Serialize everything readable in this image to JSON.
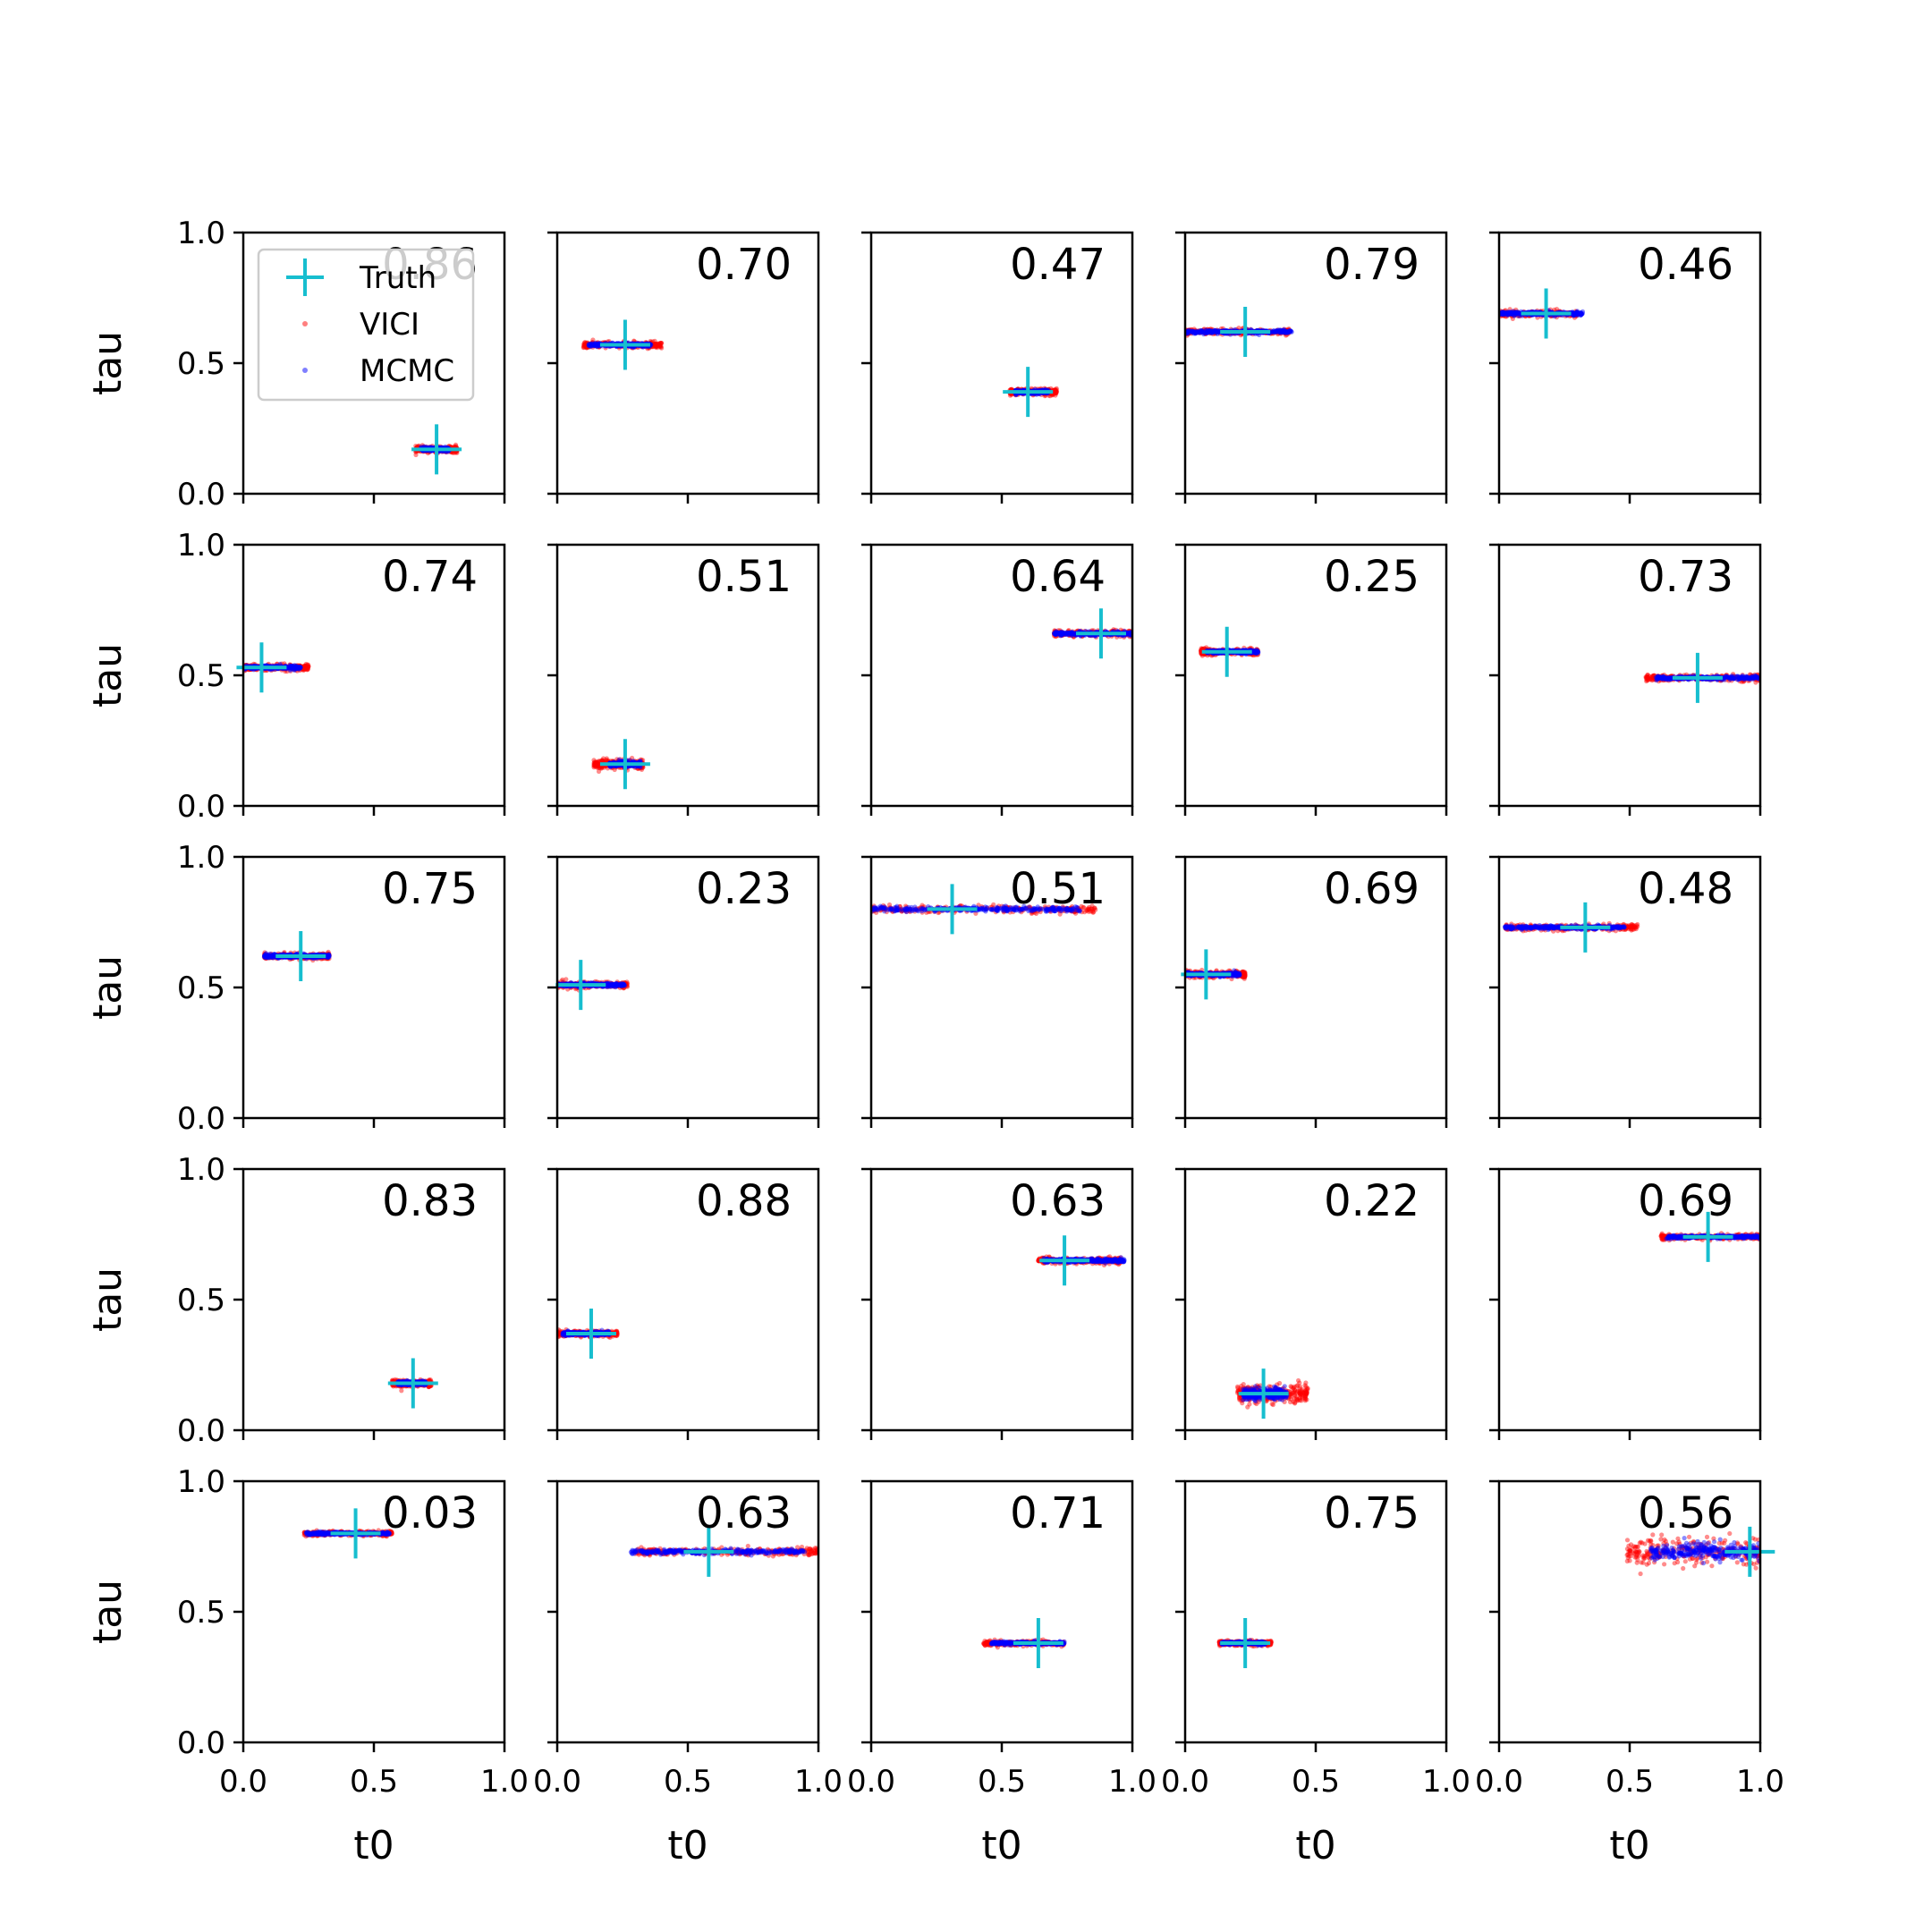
{
  "chart_data": {
    "type": "scatter",
    "rows": 5,
    "cols": 5,
    "xlabel": "t0",
    "ylabel": "tau",
    "xlim": [
      0,
      1
    ],
    "ylim": [
      0,
      1
    ],
    "xticks": [
      "0.0",
      "0.5",
      "1.0"
    ],
    "yticks": [
      "0.0",
      "0.5",
      "1.0"
    ],
    "legend": {
      "placement": "upper-left of first panel",
      "entries": [
        {
          "label": "Truth",
          "marker": "+",
          "color": "#17becf"
        },
        {
          "label": "VICI",
          "marker": "dot",
          "color": "#ff0000"
        },
        {
          "label": "MCMC",
          "marker": "dot",
          "color": "#0000ff"
        }
      ]
    },
    "series_names": [
      "VICI",
      "MCMC"
    ],
    "panels": [
      {
        "score": "0.86",
        "truth": [
          0.74,
          0.17
        ],
        "vici_range": [
          0.66,
          0.82
        ],
        "mcmc_range": [
          0.68,
          0.79
        ],
        "spread_tau": 0.01
      },
      {
        "score": "0.70",
        "truth": [
          0.26,
          0.57
        ],
        "vici_range": [
          0.1,
          0.4
        ],
        "mcmc_range": [
          0.12,
          0.36
        ],
        "spread_tau": 0.01
      },
      {
        "score": "0.47",
        "truth": [
          0.6,
          0.39
        ],
        "vici_range": [
          0.53,
          0.71
        ],
        "mcmc_range": [
          0.55,
          0.68
        ],
        "spread_tau": 0.01
      },
      {
        "score": "0.79",
        "truth": [
          0.23,
          0.62
        ],
        "vici_range": [
          0.0,
          0.4
        ],
        "mcmc_range": [
          0.0,
          0.41
        ],
        "spread_tau": 0.01
      },
      {
        "score": "0.46",
        "truth": [
          0.18,
          0.69
        ],
        "vici_range": [
          0.0,
          0.3
        ],
        "mcmc_range": [
          0.0,
          0.32
        ],
        "spread_tau": 0.01
      },
      {
        "score": "0.74",
        "truth": [
          0.07,
          0.53
        ],
        "vici_range": [
          0.0,
          0.25
        ],
        "mcmc_range": [
          0.0,
          0.22
        ],
        "spread_tau": 0.01
      },
      {
        "score": "0.51",
        "truth": [
          0.26,
          0.16
        ],
        "vici_range": [
          0.14,
          0.33
        ],
        "mcmc_range": [
          0.2,
          0.32
        ],
        "spread_tau": 0.015
      },
      {
        "score": "0.64",
        "truth": [
          0.88,
          0.66
        ],
        "vici_range": [
          0.7,
          1.0
        ],
        "mcmc_range": [
          0.7,
          1.0
        ],
        "spread_tau": 0.01
      },
      {
        "score": "0.25",
        "truth": [
          0.16,
          0.59
        ],
        "vici_range": [
          0.06,
          0.28
        ],
        "mcmc_range": [
          0.08,
          0.28
        ],
        "spread_tau": 0.01
      },
      {
        "score": "0.73",
        "truth": [
          0.76,
          0.49
        ],
        "vici_range": [
          0.56,
          1.0
        ],
        "mcmc_range": [
          0.6,
          1.0
        ],
        "spread_tau": 0.01
      },
      {
        "score": "0.75",
        "truth": [
          0.22,
          0.62
        ],
        "vici_range": [
          0.08,
          0.33
        ],
        "mcmc_range": [
          0.08,
          0.33
        ],
        "spread_tau": 0.01
      },
      {
        "score": "0.23",
        "truth": [
          0.09,
          0.51
        ],
        "vici_range": [
          0.0,
          0.27
        ],
        "mcmc_range": [
          0.0,
          0.26
        ],
        "spread_tau": 0.01
      },
      {
        "score": "0.51",
        "truth": [
          0.31,
          0.8
        ],
        "vici_range": [
          0.0,
          0.86
        ],
        "mcmc_range": [
          0.0,
          0.8
        ],
        "spread_tau": 0.012
      },
      {
        "score": "0.69",
        "truth": [
          0.08,
          0.55
        ],
        "vici_range": [
          0.0,
          0.23
        ],
        "mcmc_range": [
          0.0,
          0.21
        ],
        "spread_tau": 0.01
      },
      {
        "score": "0.48",
        "truth": [
          0.33,
          0.73
        ],
        "vici_range": [
          0.02,
          0.53
        ],
        "mcmc_range": [
          0.02,
          0.48
        ],
        "spread_tau": 0.01
      },
      {
        "score": "0.83",
        "truth": [
          0.65,
          0.18
        ],
        "vici_range": [
          0.57,
          0.72
        ],
        "mcmc_range": [
          0.59,
          0.7
        ],
        "spread_tau": 0.01
      },
      {
        "score": "0.88",
        "truth": [
          0.13,
          0.37
        ],
        "vici_range": [
          0.0,
          0.23
        ],
        "mcmc_range": [
          0.02,
          0.2
        ],
        "spread_tau": 0.01
      },
      {
        "score": "0.63",
        "truth": [
          0.74,
          0.65
        ],
        "vici_range": [
          0.64,
          0.96
        ],
        "mcmc_range": [
          0.66,
          0.97
        ],
        "spread_tau": 0.01
      },
      {
        "score": "0.22",
        "truth": [
          0.3,
          0.14
        ],
        "vici_range": [
          0.2,
          0.47
        ],
        "mcmc_range": [
          0.22,
          0.39
        ],
        "spread_tau": 0.03
      },
      {
        "score": "0.69",
        "truth": [
          0.8,
          0.74
        ],
        "vici_range": [
          0.62,
          1.0
        ],
        "mcmc_range": [
          0.64,
          1.0
        ],
        "spread_tau": 0.008
      },
      {
        "score": "0.03",
        "truth": [
          0.43,
          0.8
        ],
        "vici_range": [
          0.23,
          0.57
        ],
        "mcmc_range": [
          0.24,
          0.56
        ],
        "spread_tau": 0.008
      },
      {
        "score": "0.63",
        "truth": [
          0.58,
          0.73
        ],
        "vici_range": [
          0.3,
          1.0
        ],
        "mcmc_range": [
          0.28,
          0.95
        ],
        "spread_tau": 0.012
      },
      {
        "score": "0.71",
        "truth": [
          0.64,
          0.38
        ],
        "vici_range": [
          0.43,
          0.74
        ],
        "mcmc_range": [
          0.46,
          0.74
        ],
        "spread_tau": 0.008
      },
      {
        "score": "0.75",
        "truth": [
          0.23,
          0.38
        ],
        "vici_range": [
          0.13,
          0.33
        ],
        "mcmc_range": [
          0.14,
          0.31
        ],
        "spread_tau": 0.008
      },
      {
        "score": "0.56",
        "truth": [
          0.96,
          0.73
        ],
        "vici_range": [
          0.49,
          1.0
        ],
        "mcmc_range": [
          0.58,
          1.0
        ],
        "spread_tau": 0.045
      }
    ]
  }
}
